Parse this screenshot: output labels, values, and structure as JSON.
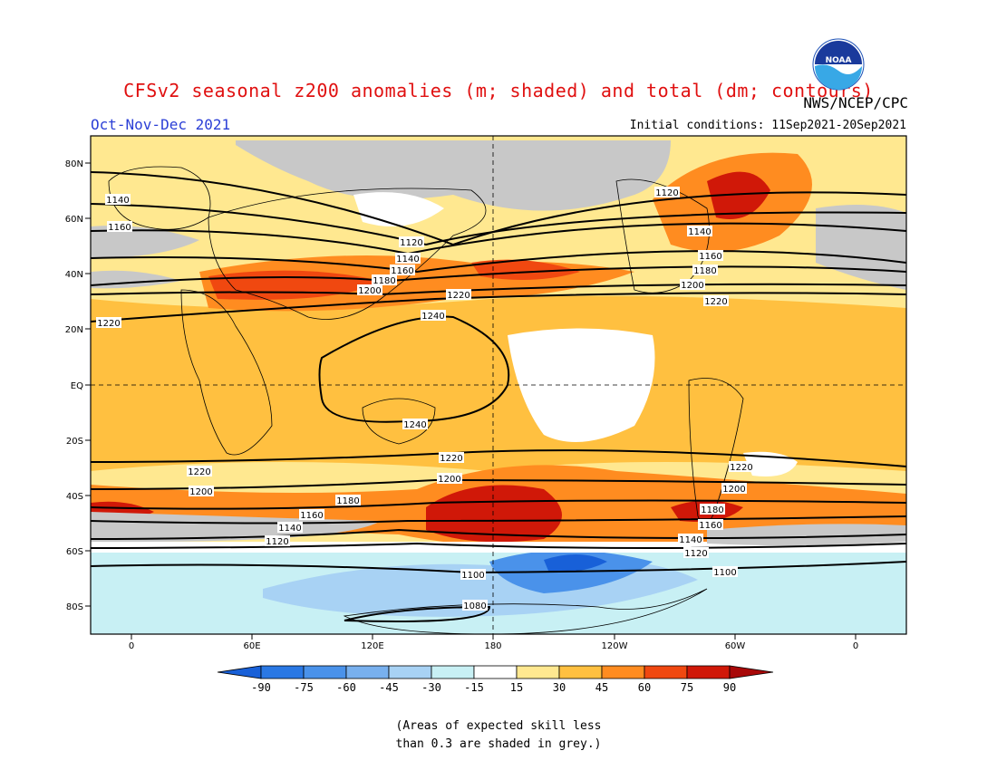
{
  "header": {
    "title": "CFSv2 seasonal z200 anomalies (m; shaded) and total (dm; contours)",
    "season": "Oct-Nov-Dec 2021",
    "initial_conditions": "Initial conditions: 11Sep2021-20Sep2021",
    "agency": "NWS/NCEP/CPC",
    "logo_text": "NOAA"
  },
  "map": {
    "lat_labels": [
      "80N",
      "60N",
      "40N",
      "20N",
      "EQ",
      "20S",
      "40S",
      "60S",
      "80S"
    ],
    "lon_labels": [
      "0",
      "60E",
      "120E",
      "180",
      "120W",
      "60W",
      "0"
    ],
    "contours": [
      {
        "value": "1080",
        "label": "1080"
      },
      {
        "value": "1100",
        "label": "1100"
      },
      {
        "value": "1120",
        "label": "1120"
      },
      {
        "value": "1140",
        "label": "1140"
      },
      {
        "value": "1160",
        "label": "1160"
      },
      {
        "value": "1180",
        "label": "1180"
      },
      {
        "value": "1200",
        "label": "1200"
      },
      {
        "value": "1220",
        "label": "1220"
      },
      {
        "value": "1240",
        "label": "1240"
      }
    ]
  },
  "colorbar": {
    "labels": [
      "-90",
      "-75",
      "-60",
      "-45",
      "-30",
      "-15",
      "15",
      "30",
      "45",
      "60",
      "75",
      "90"
    ],
    "colors": [
      "#1860d8",
      "#2a78e4",
      "#4a92ea",
      "#78b0ee",
      "#a8d2f4",
      "#c8f0f4",
      "#ffffff",
      "#ffe890",
      "#ffc040",
      "#ff8c20",
      "#f04810",
      "#d01808",
      "#a80808"
    ]
  },
  "colors": {
    "grey_skill": "#c8c8c8",
    "title_red": "#e01010",
    "season_blue": "#2b3fd6"
  },
  "note": {
    "line1": "(Areas of expected skill less",
    "line2": "than 0.3 are shaded in grey.)"
  }
}
